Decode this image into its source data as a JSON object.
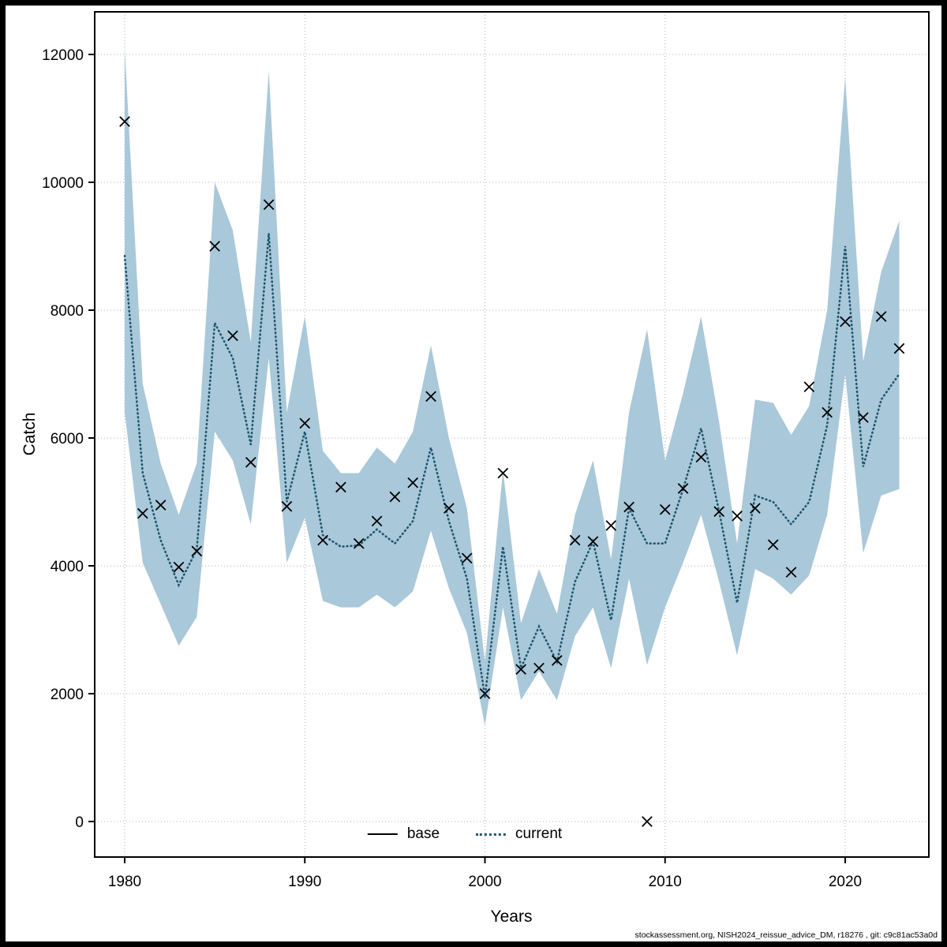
{
  "chart_data": {
    "type": "line",
    "title": "",
    "xlabel": "Years",
    "ylabel": "Catch",
    "xlim": [
      1978.3,
      2024.6
    ],
    "ylim": [
      -550,
      12650
    ],
    "xticks": [
      1980,
      1990,
      2000,
      2010,
      2020
    ],
    "yticks": [
      0,
      2000,
      4000,
      6000,
      8000,
      10000,
      12000
    ],
    "grid": true,
    "grid_color": "#b0b0b0",
    "band_color": "#a9c8d9",
    "line_color": "#1d566e",
    "marker": "x",
    "marker_color": "#000000",
    "legend": {
      "position": "bottom-center-inside",
      "entries": [
        {
          "label": "base",
          "style": "solid",
          "color": "#000000"
        },
        {
          "label": "current",
          "style": "dotted",
          "color": "#1d566e"
        }
      ]
    },
    "years": [
      1980,
      1981,
      1982,
      1983,
      1984,
      1985,
      1986,
      1987,
      1988,
      1989,
      1990,
      1991,
      1992,
      1993,
      1994,
      1995,
      1996,
      1997,
      1998,
      1999,
      2000,
      2001,
      2002,
      2003,
      2004,
      2005,
      2006,
      2007,
      2008,
      2009,
      2010,
      2011,
      2012,
      2013,
      2014,
      2015,
      2016,
      2017,
      2018,
      2019,
      2020,
      2021,
      2022,
      2023
    ],
    "observations": [
      10950,
      4820,
      4950,
      3980,
      4230,
      9000,
      7600,
      5620,
      9650,
      4930,
      6230,
      4400,
      5230,
      4350,
      4700,
      5080,
      5300,
      6650,
      4900,
      4120,
      2000,
      5450,
      2380,
      2400,
      2520,
      4400,
      4380,
      4630,
      4920,
      0,
      4880,
      5210,
      5700,
      4850,
      4780,
      4900,
      4330,
      3900,
      6800,
      6400,
      7820,
      6320,
      7900,
      7400
    ],
    "series": [
      {
        "name": "current",
        "style": "dotted",
        "values": [
          8850,
          5450,
          4400,
          3700,
          4250,
          7800,
          7250,
          5900,
          9200,
          5000,
          6100,
          4480,
          4300,
          4320,
          4570,
          4350,
          4700,
          5850,
          4700,
          3800,
          1950,
          4300,
          2400,
          3050,
          2500,
          3750,
          4380,
          3150,
          4900,
          4350,
          4350,
          5200,
          6150,
          4850,
          3420,
          5100,
          5000,
          4650,
          5000,
          6200,
          9000,
          5550,
          6600,
          7000
        ]
      }
    ],
    "band": {
      "upper": [
        12100,
        6850,
        5600,
        4800,
        5600,
        10000,
        9250,
        7500,
        11750,
        6400,
        7900,
        5800,
        5450,
        5450,
        5850,
        5600,
        6100,
        7450,
        6000,
        4900,
        2500,
        5500,
        3100,
        3950,
        3250,
        4800,
        5650,
        4100,
        6400,
        7700,
        5650,
        6700,
        7900,
        6250,
        4350,
        6600,
        6550,
        6050,
        6500,
        8000,
        11650,
        7200,
        8600,
        9400
      ],
      "lower": [
        6400,
        4050,
        3400,
        2750,
        3200,
        6100,
        5650,
        4650,
        7250,
        4050,
        4750,
        3450,
        3350,
        3350,
        3550,
        3350,
        3600,
        4550,
        3650,
        2950,
        1500,
        3350,
        1900,
        2350,
        1900,
        2900,
        3350,
        2400,
        3800,
        2450,
        3350,
        4050,
        4800,
        3750,
        2600,
        3950,
        3800,
        3550,
        3850,
        4800,
        7000,
        4200,
        5100,
        5200
      ]
    }
  },
  "footer": {
    "text": "stockassessment.org, NISH2024_reissue_advice_DM, r18276 , git: c9c81ac53a0d"
  }
}
